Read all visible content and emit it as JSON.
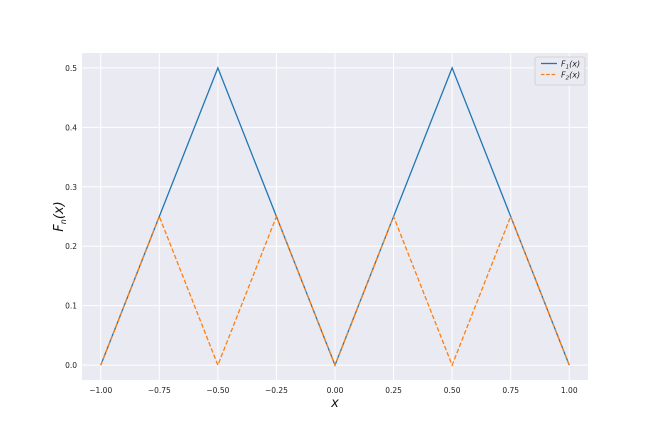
{
  "chart_data": {
    "type": "line",
    "title": "",
    "xlabel": "x",
    "ylabel": "F_n(x)",
    "xlim": [
      -1.08,
      1.08
    ],
    "ylim": [
      -0.025,
      0.525
    ],
    "xticks": [
      -1.0,
      -0.75,
      -0.5,
      -0.25,
      0.0,
      0.25,
      0.5,
      0.75,
      1.0
    ],
    "xtick_labels": [
      "−1.00",
      "−0.75",
      "−0.50",
      "−0.25",
      "0.00",
      "0.25",
      "0.50",
      "0.75",
      "1.00"
    ],
    "yticks": [
      0.0,
      0.1,
      0.2,
      0.3,
      0.4,
      0.5
    ],
    "ytick_labels": [
      "0.0",
      "0.1",
      "0.2",
      "0.3",
      "0.4",
      "0.5"
    ],
    "grid": true,
    "legend_position": "top-right",
    "series": [
      {
        "name": "F1(x)",
        "color": "#1f77b4",
        "style": "solid",
        "x": [
          -1.0,
          -0.5,
          0.0,
          0.5,
          1.0
        ],
        "y": [
          0.0,
          0.5,
          0.0,
          0.5,
          0.0
        ]
      },
      {
        "name": "F2(x)",
        "color": "#ff7f0e",
        "style": "dashed",
        "x": [
          -1.0,
          -0.75,
          -0.5,
          -0.25,
          0.0,
          0.25,
          0.5,
          0.75,
          1.0
        ],
        "y": [
          0.0,
          0.25,
          0.0,
          0.25,
          0.0,
          0.25,
          0.0,
          0.25,
          0.0
        ]
      }
    ]
  }
}
